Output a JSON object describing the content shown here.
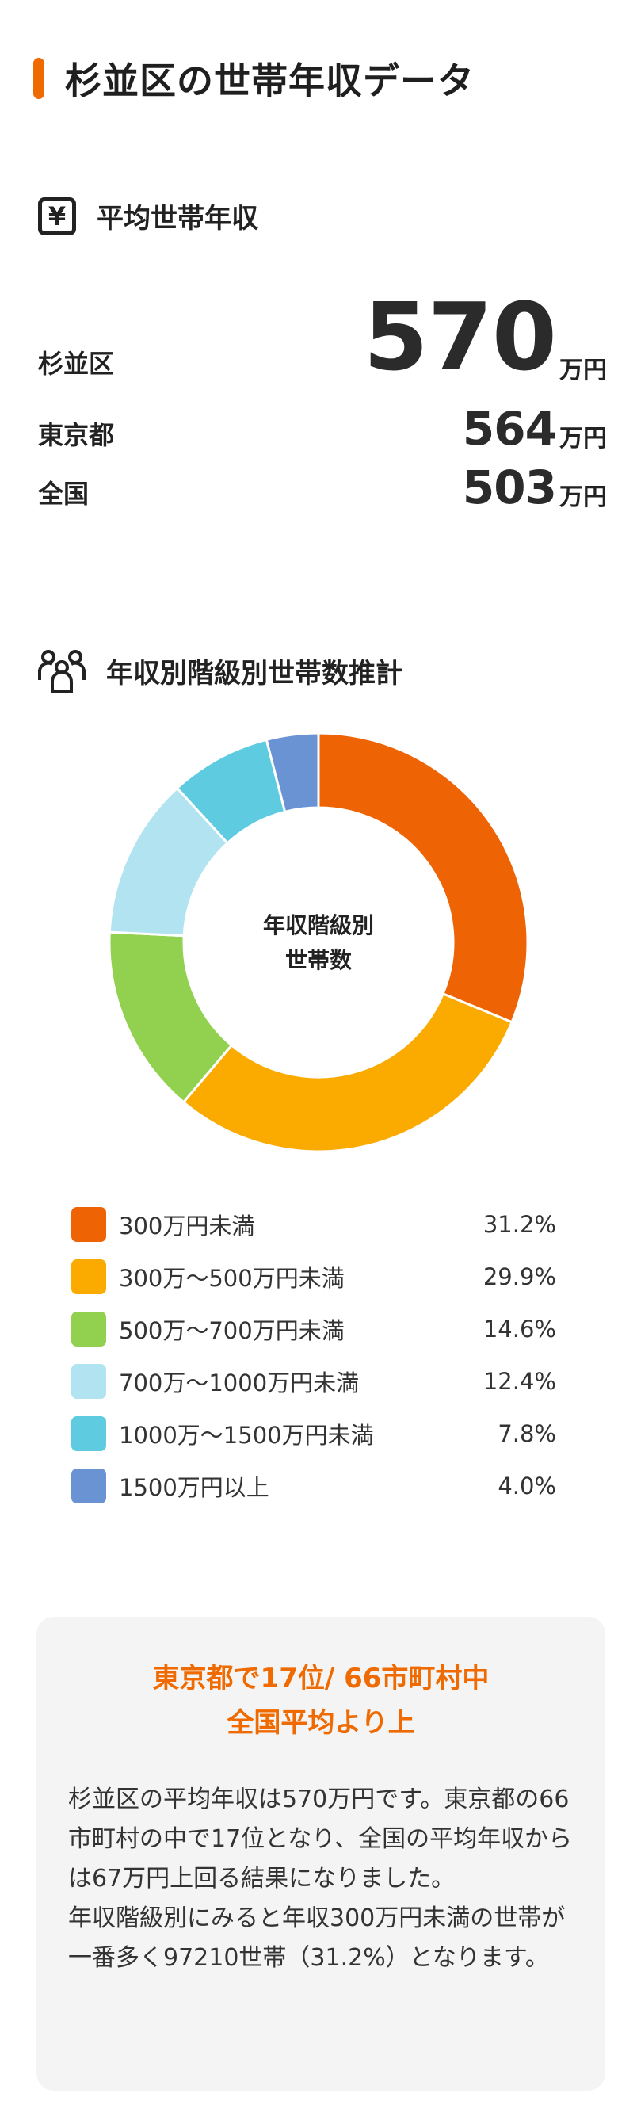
{
  "page_title": "杉並区の世帯年収データ",
  "avg_section": {
    "icon": "yen-icon",
    "icon_glyph": "¥",
    "title": "平均世帯年収",
    "rows": [
      {
        "name": "杉並区",
        "value": "570",
        "unit": "万円"
      },
      {
        "name": "東京都",
        "value": "564",
        "unit": "万円"
      },
      {
        "name": "全国",
        "value": "503",
        "unit": "万円"
      }
    ]
  },
  "dist_section": {
    "icon": "people-group-icon",
    "title": "年収別階級別世帯数推計",
    "center_label_line1": "年収階級別",
    "center_label_line2": "世帯数"
  },
  "chart_data": {
    "type": "pie",
    "donut": true,
    "categories": [
      "300万円未満",
      "300万〜500万円未満",
      "500万〜700万円未満",
      "700万〜1000万円未満",
      "1000万〜1500万円未満",
      "1500万円以上"
    ],
    "values": [
      31.2,
      29.9,
      14.6,
      12.4,
      7.8,
      4.0
    ],
    "labels": [
      "31.2%",
      "29.9%",
      "14.6%",
      "12.4%",
      "7.8%",
      "4.0%"
    ],
    "colors": [
      "#ee6304",
      "#fbaa00",
      "#92d04f",
      "#b1e3f0",
      "#5ecbe0",
      "#6a93d3"
    ],
    "legend_position": "bottom"
  },
  "summary": {
    "headline_line1": "東京都で17位/ 66市町村中",
    "headline_line2": "全国平均より上",
    "paragraph1": "杉並区の平均年収は570万円です。東京都の66市町村の中で17位となり、全国の平均年収からは67万円上回る結果になりました。",
    "paragraph2": "年収階級別にみると年収300万円未満の世帯が一番多く97210世帯（31.2%）となります。"
  }
}
